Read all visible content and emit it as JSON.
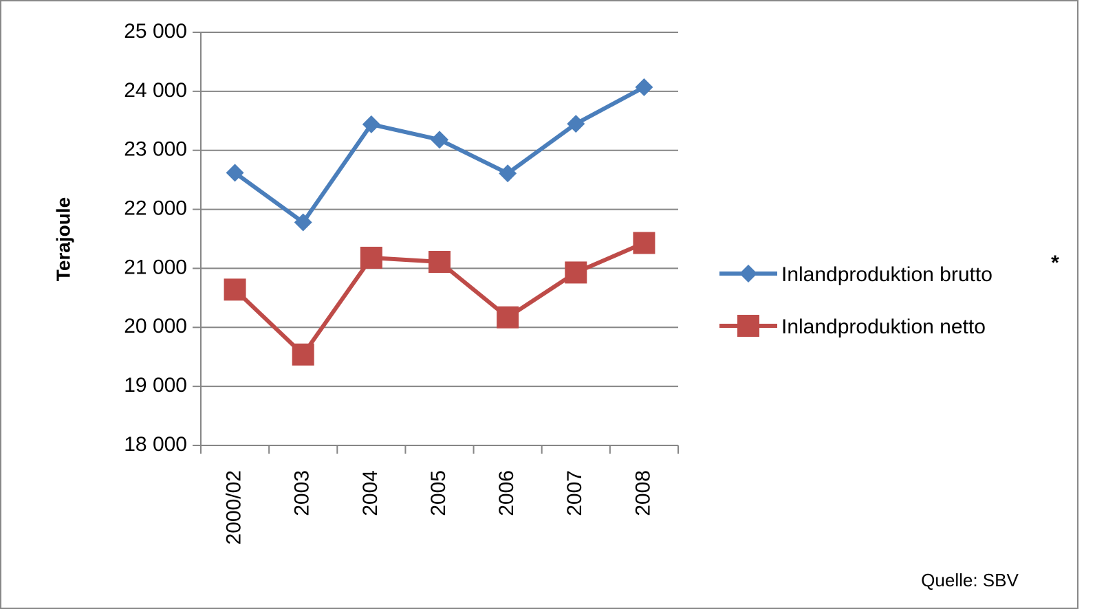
{
  "chart_data": {
    "type": "line",
    "y_label": "Terajoule",
    "categories": [
      "2000/02",
      "2003",
      "2004",
      "2005",
      "2006",
      "2007",
      "2008"
    ],
    "series": [
      {
        "name": "Inlandproduktion brutto",
        "color": "#4a7ebb",
        "marker": "diamond",
        "values": [
          22620,
          21780,
          23440,
          23180,
          22610,
          23450,
          24070
        ]
      },
      {
        "name": "Inlandproduktion netto",
        "color": "#be4b48",
        "marker": "square",
        "values": [
          20640,
          19540,
          21180,
          21110,
          20170,
          20930,
          21430
        ]
      }
    ],
    "ylim": [
      18000,
      25000
    ],
    "yticks": [
      {
        "value": 18000,
        "label": "18 000"
      },
      {
        "value": 19000,
        "label": "19 000"
      },
      {
        "value": 20000,
        "label": "20 000"
      },
      {
        "value": 21000,
        "label": "21 000"
      },
      {
        "value": 22000,
        "label": "22 000"
      },
      {
        "value": 23000,
        "label": "23 000"
      },
      {
        "value": 24000,
        "label": "24 000"
      },
      {
        "value": 25000,
        "label": "25 000"
      }
    ],
    "grid": true,
    "legend": "right",
    "legend_note": "*",
    "source": "Quelle: SBV"
  }
}
